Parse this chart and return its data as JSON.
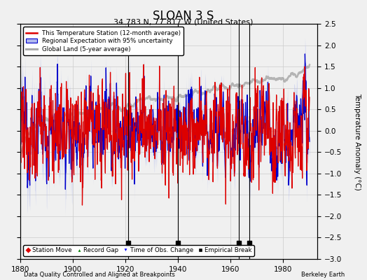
{
  "title": "SLOAN 3 S",
  "subtitle": "34.783 N, 77.817 W (United States)",
  "ylabel": "Temperature Anomaly (°C)",
  "xlabel_left": "Data Quality Controlled and Aligned at Breakpoints",
  "xlabel_right": "Berkeley Earth",
  "xlim": [
    1880,
    1993
  ],
  "ylim": [
    -3,
    2.5
  ],
  "yticks": [
    -3,
    -2.5,
    -2,
    -1.5,
    -1,
    -0.5,
    0,
    0.5,
    1,
    1.5,
    2,
    2.5
  ],
  "xticks": [
    1880,
    1900,
    1920,
    1940,
    1960,
    1980
  ],
  "grid_color": "#cccccc",
  "bg_color": "#f0f0f0",
  "red_line_color": "#dd0000",
  "blue_line_color": "#0000cc",
  "blue_fill_color": "#b0b8ee",
  "gray_line_color": "#aaaaaa",
  "empirical_break_years": [
    1921,
    1940,
    1963,
    1967
  ],
  "seed": 12345
}
